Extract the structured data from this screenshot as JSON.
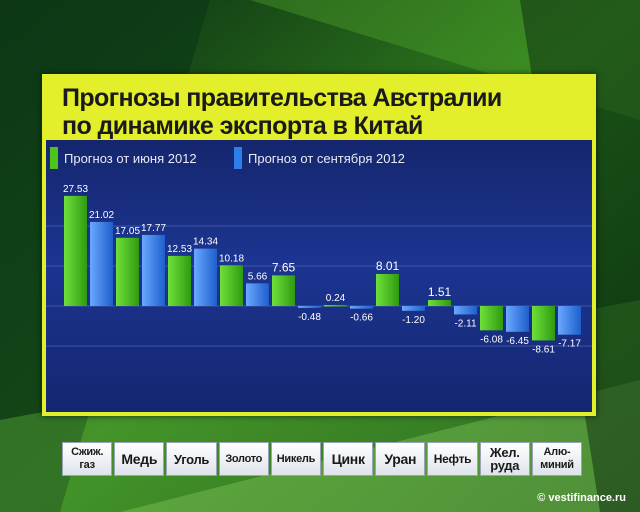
{
  "title_lines": [
    "Прогнозы правительства Австралии",
    "по динамике экспорта в Китай"
  ],
  "legend": [
    {
      "label": "Прогноз от июня 2012",
      "color": "#4cc41c"
    },
    {
      "label": "Прогноз от сентября 2012",
      "color": "#2f7de8"
    }
  ],
  "category_labels": [
    "Сжиж.\nгаз",
    "Медь",
    "Уголь",
    "Золото",
    "Никель",
    "Цинк",
    "Уран",
    "Нефть",
    "Жел.\nруда",
    "Алю-\nминий"
  ],
  "credit": "© vestifinance.ru",
  "chart_data": {
    "type": "bar",
    "title": "Прогнозы правительства Австралии по динамике экспорта в Китай",
    "categories": [
      "Сжиж. газ",
      "Медь",
      "Уголь",
      "Золото",
      "Никель",
      "Цинк",
      "Уран",
      "Нефть",
      "Жел. руда",
      "Алю-миний"
    ],
    "series": [
      {
        "name": "Прогноз от июня 2012",
        "color": "#4cc41c",
        "values": [
          27.53,
          17.05,
          12.53,
          10.18,
          7.65,
          0.24,
          8.01,
          1.51,
          -6.08,
          -8.61
        ]
      },
      {
        "name": "Прогноз от сентября 2012",
        "color": "#2f7de8",
        "values": [
          21.02,
          17.77,
          14.34,
          5.66,
          -0.48,
          -0.66,
          -1.2,
          -2.11,
          -6.45,
          -7.17
        ]
      }
    ],
    "labels": [
      [
        "27.53",
        "17.05",
        "12.53",
        "10.18",
        "7.65",
        "0.24",
        "8.01",
        "1.51",
        "-6.08",
        "-8.61"
      ],
      [
        "21.02",
        "17.77",
        "14.34",
        "5.66",
        "-0.48",
        "-0.66",
        "-1.20",
        "-2.11",
        "-6.45",
        "-7.17"
      ]
    ],
    "ylim": [
      -10,
      30
    ],
    "xlabel": "",
    "ylabel": "",
    "grid": true
  }
}
